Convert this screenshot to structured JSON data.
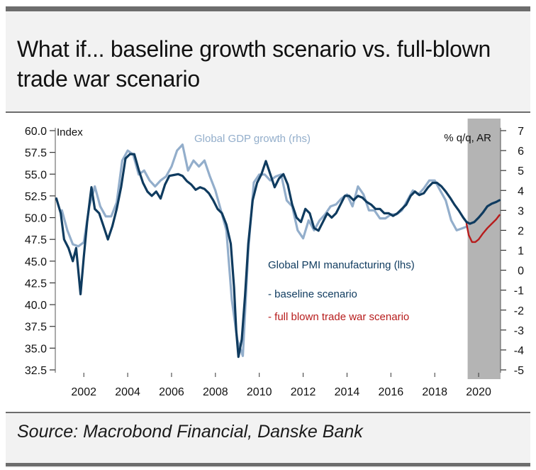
{
  "title": "What if... baseline growth scenario vs. full-blown trade war scenario",
  "source": "Source: Macrobond Financial, Danske Bank",
  "colors": {
    "pmi": "#0f3b5f",
    "gdp": "#93aecb",
    "tradewar": "#b71c1c",
    "forecast_shade": "#b4b4b4"
  },
  "chart_data": {
    "type": "line",
    "left_axis": {
      "label": "Index",
      "range": [
        32.5,
        60.0
      ],
      "ticks": [
        "60.0",
        "57.5",
        "55.0",
        "52.5",
        "50.0",
        "47.5",
        "45.0",
        "42.5",
        "40.0",
        "37.5",
        "35.0",
        "32.5"
      ]
    },
    "right_axis": {
      "label": "% q/q, AR",
      "range": [
        -5,
        7
      ],
      "ticks": [
        "7",
        "6",
        "5",
        "4",
        "3",
        "2",
        "1",
        "0",
        "-1",
        "-2",
        "-3",
        "-4",
        "-5"
      ]
    },
    "x_ticks": [
      "2002",
      "2004",
      "2006",
      "2008",
      "2010",
      "2012",
      "2014",
      "2016",
      "2018",
      "2020"
    ],
    "x_range": [
      2000.7,
      2021.0
    ],
    "forecast_shade": [
      2019.5,
      2021.0
    ],
    "series": [
      {
        "name": "Global PMI manufacturing (lhs)",
        "axis": "left",
        "points": [
          [
            2000.75,
            52.2
          ],
          [
            2000.95,
            50.5
          ],
          [
            2001.1,
            47.5
          ],
          [
            2001.3,
            46.5
          ],
          [
            2001.5,
            45.0
          ],
          [
            2001.65,
            46.5
          ],
          [
            2001.85,
            41.2
          ],
          [
            2002.0,
            45.5
          ],
          [
            2002.15,
            49.5
          ],
          [
            2002.35,
            53.5
          ],
          [
            2002.5,
            51.0
          ],
          [
            2002.7,
            50.5
          ],
          [
            2002.9,
            49.0
          ],
          [
            2003.1,
            47.5
          ],
          [
            2003.3,
            49.0
          ],
          [
            2003.5,
            51.0
          ],
          [
            2003.7,
            53.5
          ],
          [
            2003.9,
            56.8
          ],
          [
            2004.1,
            57.3
          ],
          [
            2004.3,
            57.3
          ],
          [
            2004.5,
            55.5
          ],
          [
            2004.7,
            54.0
          ],
          [
            2004.9,
            53.0
          ],
          [
            2005.1,
            52.5
          ],
          [
            2005.3,
            53.0
          ],
          [
            2005.5,
            52.2
          ],
          [
            2005.7,
            53.8
          ],
          [
            2005.9,
            54.8
          ],
          [
            2006.1,
            54.9
          ],
          [
            2006.3,
            55.0
          ],
          [
            2006.5,
            54.8
          ],
          [
            2006.7,
            54.2
          ],
          [
            2006.9,
            53.8
          ],
          [
            2007.1,
            53.2
          ],
          [
            2007.3,
            53.5
          ],
          [
            2007.5,
            53.3
          ],
          [
            2007.7,
            52.8
          ],
          [
            2007.9,
            52.0
          ],
          [
            2008.1,
            51.0
          ],
          [
            2008.3,
            50.5
          ],
          [
            2008.5,
            49.2
          ],
          [
            2008.7,
            47.0
          ],
          [
            2008.85,
            42.0
          ],
          [
            2008.95,
            37.0
          ],
          [
            2009.05,
            34.0
          ],
          [
            2009.2,
            36.0
          ],
          [
            2009.35,
            41.0
          ],
          [
            2009.5,
            47.0
          ],
          [
            2009.7,
            52.0
          ],
          [
            2009.9,
            54.0
          ],
          [
            2010.1,
            55.0
          ],
          [
            2010.3,
            56.5
          ],
          [
            2010.5,
            55.0
          ],
          [
            2010.7,
            53.5
          ],
          [
            2010.9,
            54.5
          ],
          [
            2011.1,
            55.0
          ],
          [
            2011.3,
            53.8
          ],
          [
            2011.5,
            51.5
          ],
          [
            2011.7,
            50.0
          ],
          [
            2011.9,
            49.5
          ],
          [
            2012.1,
            51.0
          ],
          [
            2012.3,
            50.5
          ],
          [
            2012.5,
            48.8
          ],
          [
            2012.7,
            48.5
          ],
          [
            2012.9,
            49.5
          ],
          [
            2013.1,
            50.5
          ],
          [
            2013.3,
            50.0
          ],
          [
            2013.5,
            50.5
          ],
          [
            2013.7,
            51.5
          ],
          [
            2013.9,
            52.5
          ],
          [
            2014.1,
            52.5
          ],
          [
            2014.3,
            52.0
          ],
          [
            2014.5,
            52.5
          ],
          [
            2014.7,
            52.3
          ],
          [
            2014.9,
            51.8
          ],
          [
            2015.1,
            51.5
          ],
          [
            2015.3,
            51.0
          ],
          [
            2015.5,
            51.0
          ],
          [
            2015.7,
            50.5
          ],
          [
            2015.9,
            50.5
          ],
          [
            2016.1,
            50.2
          ],
          [
            2016.3,
            50.5
          ],
          [
            2016.5,
            51.0
          ],
          [
            2016.7,
            51.5
          ],
          [
            2016.9,
            52.5
          ],
          [
            2017.1,
            53.0
          ],
          [
            2017.3,
            52.6
          ],
          [
            2017.5,
            52.8
          ],
          [
            2017.7,
            53.5
          ],
          [
            2017.9,
            54.0
          ],
          [
            2018.1,
            54.0
          ],
          [
            2018.3,
            53.6
          ],
          [
            2018.5,
            53.0
          ],
          [
            2018.7,
            52.3
          ],
          [
            2018.9,
            51.5
          ],
          [
            2019.1,
            50.8
          ],
          [
            2019.3,
            50.0
          ],
          [
            2019.45,
            49.5
          ]
        ]
      },
      {
        "name": "Global GDP growth (rhs)",
        "axis": "right",
        "points": [
          [
            2001.0,
            3.0
          ],
          [
            2001.25,
            2.0
          ],
          [
            2001.5,
            1.3
          ],
          [
            2001.75,
            1.2
          ],
          [
            2002.0,
            1.4
          ],
          [
            2002.25,
            3.2
          ],
          [
            2002.5,
            4.2
          ],
          [
            2002.75,
            3.2
          ],
          [
            2003.0,
            2.7
          ],
          [
            2003.25,
            2.7
          ],
          [
            2003.5,
            3.4
          ],
          [
            2003.75,
            5.5
          ],
          [
            2004.0,
            6.0
          ],
          [
            2004.25,
            5.8
          ],
          [
            2004.5,
            4.8
          ],
          [
            2004.75,
            5.0
          ],
          [
            2005.0,
            4.5
          ],
          [
            2005.25,
            4.2
          ],
          [
            2005.5,
            4.5
          ],
          [
            2005.75,
            4.7
          ],
          [
            2006.0,
            5.2
          ],
          [
            2006.25,
            6.0
          ],
          [
            2006.5,
            6.3
          ],
          [
            2006.75,
            5.0
          ],
          [
            2007.0,
            5.5
          ],
          [
            2007.25,
            5.2
          ],
          [
            2007.5,
            5.5
          ],
          [
            2007.75,
            4.7
          ],
          [
            2008.0,
            4.0
          ],
          [
            2008.25,
            3.0
          ],
          [
            2008.5,
            2.0
          ],
          [
            2008.75,
            -1.5
          ],
          [
            2009.0,
            -3.5
          ],
          [
            2009.25,
            -4.3
          ],
          [
            2009.5,
            1.0
          ],
          [
            2009.75,
            4.4
          ],
          [
            2010.0,
            4.8
          ],
          [
            2010.25,
            4.8
          ],
          [
            2010.5,
            4.5
          ],
          [
            2010.75,
            4.7
          ],
          [
            2011.0,
            4.8
          ],
          [
            2011.25,
            3.5
          ],
          [
            2011.5,
            3.2
          ],
          [
            2011.75,
            2.0
          ],
          [
            2012.0,
            1.6
          ],
          [
            2012.25,
            2.5
          ],
          [
            2012.5,
            2.0
          ],
          [
            2012.75,
            2.5
          ],
          [
            2013.0,
            2.8
          ],
          [
            2013.25,
            3.2
          ],
          [
            2013.5,
            3.3
          ],
          [
            2013.75,
            3.6
          ],
          [
            2014.0,
            3.8
          ],
          [
            2014.25,
            3.2
          ],
          [
            2014.5,
            4.2
          ],
          [
            2014.75,
            3.8
          ],
          [
            2015.0,
            3.0
          ],
          [
            2015.25,
            3.0
          ],
          [
            2015.5,
            2.6
          ],
          [
            2015.75,
            2.6
          ],
          [
            2016.0,
            2.8
          ],
          [
            2016.25,
            2.8
          ],
          [
            2016.5,
            3.0
          ],
          [
            2016.75,
            3.5
          ],
          [
            2017.0,
            4.0
          ],
          [
            2017.25,
            3.8
          ],
          [
            2017.5,
            4.1
          ],
          [
            2017.75,
            4.5
          ],
          [
            2018.0,
            4.5
          ],
          [
            2018.25,
            4.0
          ],
          [
            2018.5,
            3.5
          ],
          [
            2018.75,
            2.5
          ],
          [
            2019.0,
            2.0
          ],
          [
            2019.25,
            2.1
          ],
          [
            2019.5,
            2.2
          ]
        ]
      },
      {
        "name": "- baseline scenario",
        "axis": "left",
        "points": [
          [
            2019.45,
            49.5
          ],
          [
            2019.6,
            49.3
          ],
          [
            2019.8,
            49.5
          ],
          [
            2020.0,
            50.0
          ],
          [
            2020.2,
            50.6
          ],
          [
            2020.4,
            51.3
          ],
          [
            2020.6,
            51.6
          ],
          [
            2020.8,
            51.8
          ],
          [
            2020.95,
            52.0
          ]
        ]
      },
      {
        "name": "- full blown trade war scenario",
        "axis": "left",
        "points": [
          [
            2019.45,
            49.3
          ],
          [
            2019.55,
            48.0
          ],
          [
            2019.7,
            47.2
          ],
          [
            2019.85,
            47.2
          ],
          [
            2020.0,
            47.5
          ],
          [
            2020.2,
            48.2
          ],
          [
            2020.4,
            48.8
          ],
          [
            2020.6,
            49.3
          ],
          [
            2020.8,
            49.8
          ],
          [
            2020.95,
            50.3
          ]
        ]
      }
    ]
  }
}
